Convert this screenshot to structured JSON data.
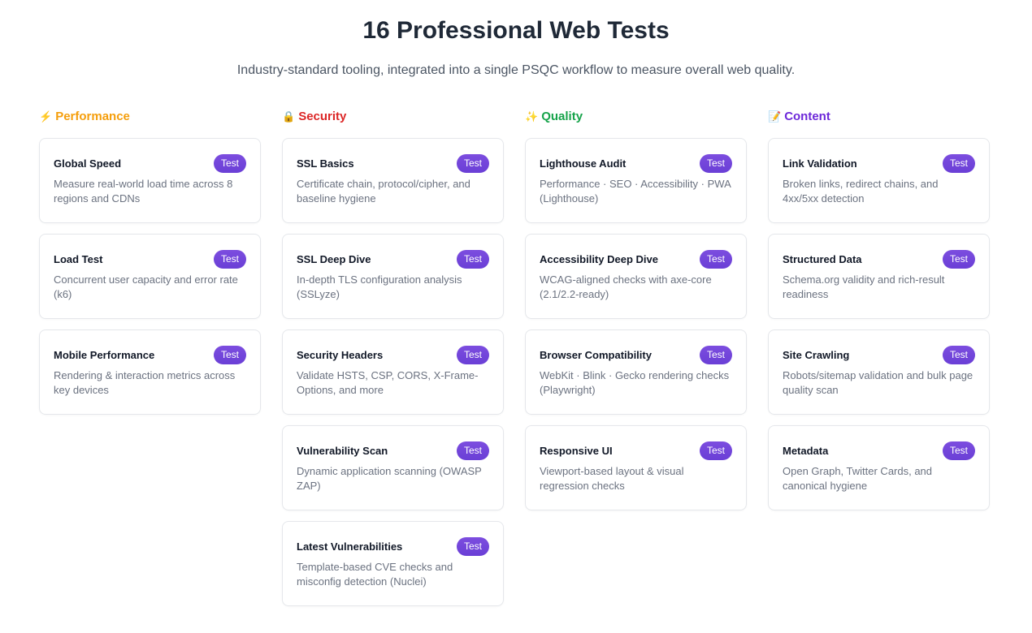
{
  "header": {
    "title": "16 Professional Web Tests",
    "subtitle": "Industry-standard tooling, integrated into a single PSQC workflow to measure overall web quality."
  },
  "button_label": "Test",
  "accent": "#6d44d9",
  "columns": [
    {
      "icon": "⚡",
      "icon_name": "lightning-icon",
      "title": "Performance",
      "color": "#f59e0b",
      "items": [
        {
          "name": "Global Speed",
          "desc": "Measure real-world load time across 8 regions and CDNs"
        },
        {
          "name": "Load Test",
          "desc": "Concurrent user capacity and error rate (k6)"
        },
        {
          "name": "Mobile Performance",
          "desc": "Rendering & interaction metrics across key devices"
        }
      ]
    },
    {
      "icon": "🔒",
      "icon_name": "lock-icon",
      "title": "Security",
      "color": "#dc2626",
      "items": [
        {
          "name": "SSL Basics",
          "desc": "Certificate chain, protocol/cipher, and baseline hygiene"
        },
        {
          "name": "SSL Deep Dive",
          "desc": "In-depth TLS configuration analysis (SSLyze)"
        },
        {
          "name": "Security Headers",
          "desc": "Validate HSTS, CSP, CORS, X-Frame-Options, and more"
        },
        {
          "name": "Vulnerability Scan",
          "desc": "Dynamic application scanning (OWASP ZAP)"
        },
        {
          "name": "Latest Vulnerabilities",
          "desc": "Template-based CVE checks and misconfig detection (Nuclei)"
        }
      ]
    },
    {
      "icon": "✨",
      "icon_name": "sparkles-icon",
      "title": "Quality",
      "color": "#16a34a",
      "items": [
        {
          "name": "Lighthouse Audit",
          "desc": "Performance · SEO · Accessibility · PWA (Lighthouse)"
        },
        {
          "name": "Accessibility Deep Dive",
          "desc": "WCAG-aligned checks with axe-core (2.1/2.2-ready)"
        },
        {
          "name": "Browser Compatibility",
          "desc": "WebKit · Blink · Gecko rendering checks (Playwright)"
        },
        {
          "name": "Responsive UI",
          "desc": "Viewport-based layout & visual regression checks"
        }
      ]
    },
    {
      "icon": "📝",
      "icon_name": "memo-icon",
      "title": "Content",
      "color": "#6d28d9",
      "items": [
        {
          "name": "Link Validation",
          "desc": "Broken links, redirect chains, and 4xx/5xx detection"
        },
        {
          "name": "Structured Data",
          "desc": "Schema.org validity and rich-result readiness"
        },
        {
          "name": "Site Crawling",
          "desc": "Robots/sitemap validation and bulk page quality scan"
        },
        {
          "name": "Metadata",
          "desc": "Open Graph, Twitter Cards, and canonical hygiene"
        }
      ]
    }
  ]
}
